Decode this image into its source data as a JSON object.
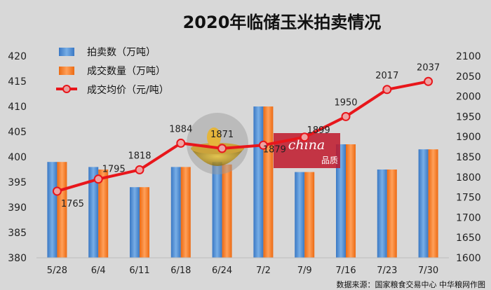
{
  "chart_data": {
    "type": "bar",
    "title": "2020年临储玉米拍卖情况",
    "categories": [
      "5/28",
      "6/4",
      "6/11",
      "6/18",
      "6/24",
      "7/2",
      "7/9",
      "7/16",
      "7/23",
      "7/30"
    ],
    "series": [
      {
        "name": "拍卖数（万吨）",
        "type": "bar",
        "axis": "left",
        "color": "#4f8fd6",
        "values": [
          399,
          398,
          394,
          398,
          399,
          410,
          397,
          402.5,
          397.5,
          401.5
        ]
      },
      {
        "name": "成交数量（万吨）",
        "type": "bar",
        "axis": "left",
        "color": "#f47a26",
        "values": [
          399,
          397.5,
          394,
          398,
          398.5,
          410,
          397,
          402.5,
          397.5,
          401.5
        ]
      },
      {
        "name": "成交均价（元/吨）",
        "type": "line",
        "axis": "right",
        "color": "#e8161b",
        "values": [
          1765,
          1795,
          1818,
          1884,
          1871,
          1879,
          1899,
          1950,
          2017,
          2037
        ]
      }
    ],
    "data_labels": [
      "1765",
      "1795",
      "1818",
      "1884",
      "1871",
      "1879",
      "1899",
      "1950",
      "2017",
      "2037"
    ],
    "left_axis": {
      "min": 380,
      "max": 420,
      "ticks": [
        380,
        385,
        390,
        395,
        400,
        405,
        410,
        415,
        420
      ]
    },
    "right_axis": {
      "min": 1600,
      "max": 2100,
      "ticks": [
        1600,
        1650,
        1700,
        1750,
        1800,
        1850,
        1900,
        1950,
        2000,
        2050,
        2100
      ]
    },
    "grid": false,
    "legend": "top-left"
  },
  "source": "数据来源：国家粮食交易中心 中华粮网作图",
  "watermark_text": "china 品质"
}
